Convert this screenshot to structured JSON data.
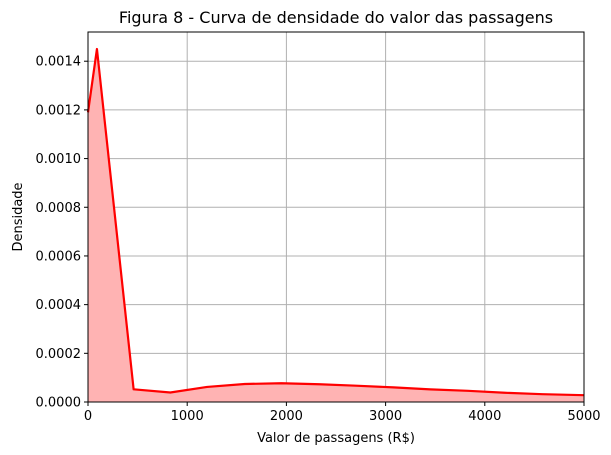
{
  "chart_data": {
    "type": "area",
    "title": "Figura 8 - Curva de densidade do valor das passagens",
    "xlabel": "Valor de passagens (R$)",
    "ylabel": "Densidade",
    "xlim": [
      0,
      5000
    ],
    "ylim": [
      0,
      0.00152
    ],
    "xticks": [
      0,
      1000,
      2000,
      3000,
      4000,
      5000
    ],
    "xtick_labels": [
      "0",
      "1000",
      "2000",
      "3000",
      "4000",
      "5000"
    ],
    "yticks": [
      0,
      0.0002,
      0.0004,
      0.0006,
      0.0008,
      0.001,
      0.0012,
      0.0014
    ],
    "ytick_labels": [
      "0.0000",
      "0.0002",
      "0.0004",
      "0.0006",
      "0.0008",
      "0.0010",
      "0.0012",
      "0.0014"
    ],
    "grid": true,
    "series": [
      {
        "line_color": "#ff0000",
        "fill_color": "#ffb3b3",
        "x": [
          0,
          90,
          460,
          830,
          1200,
          1580,
          1950,
          2330,
          2700,
          3080,
          3450,
          3830,
          4200,
          4580,
          5000
        ],
        "y": [
          0.00119,
          0.00145,
          5.2e-05,
          3.9e-05,
          6.2e-05,
          7.4e-05,
          7.7e-05,
          7.3e-05,
          6.7e-05,
          6e-05,
          5.2e-05,
          4.6e-05,
          3.8e-05,
          3.2e-05,
          2.8e-05
        ]
      }
    ]
  }
}
